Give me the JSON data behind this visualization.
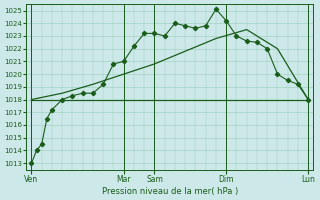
{
  "xlabel": "Pression niveau de la mer( hPa )",
  "bg_color": "#cce8e8",
  "grid_color": "#99ccbb",
  "line_color": "#1a5c1a",
  "ylim": [
    1012.5,
    1025.5
  ],
  "yticks": [
    1013,
    1014,
    1015,
    1016,
    1017,
    1018,
    1019,
    1020,
    1021,
    1022,
    1023,
    1024,
    1025
  ],
  "day_labels": [
    "Ven",
    "Mar",
    "Sam",
    "Dim",
    "Lun"
  ],
  "day_x": [
    0,
    18,
    24,
    38,
    54
  ],
  "series_main": {
    "x": [
      0,
      1,
      2,
      3,
      4,
      6,
      8,
      10,
      12,
      14,
      16,
      18,
      20,
      22,
      24,
      26,
      28,
      30,
      32,
      34,
      36,
      38,
      40,
      42,
      44,
      46,
      48,
      50,
      52,
      54
    ],
    "y": [
      1013.0,
      1014.0,
      1014.5,
      1016.5,
      1017.2,
      1018.0,
      1018.3,
      1018.5,
      1018.5,
      1019.2,
      1020.8,
      1021.0,
      1022.2,
      1023.2,
      1023.2,
      1023.0,
      1024.0,
      1023.8,
      1023.6,
      1023.8,
      1025.1,
      1024.2,
      1023.0,
      1022.6,
      1022.5,
      1022.0,
      1020.0,
      1019.5,
      1019.2,
      1018.0
    ]
  },
  "series_diag": {
    "x": [
      0,
      6,
      12,
      18,
      24,
      30,
      36,
      42,
      48,
      54
    ],
    "y": [
      1018.0,
      1018.5,
      1019.2,
      1020.0,
      1020.8,
      1021.8,
      1022.8,
      1023.5,
      1022.0,
      1018.0
    ]
  },
  "series_flat": {
    "x": [
      0,
      36,
      38,
      40,
      42,
      44,
      46,
      48,
      50,
      52,
      54
    ],
    "y": [
      1018.0,
      1018.0,
      1018.0,
      1018.0,
      1018.0,
      1018.0,
      1018.0,
      1018.0,
      1018.0,
      1018.0,
      1018.0
    ]
  }
}
